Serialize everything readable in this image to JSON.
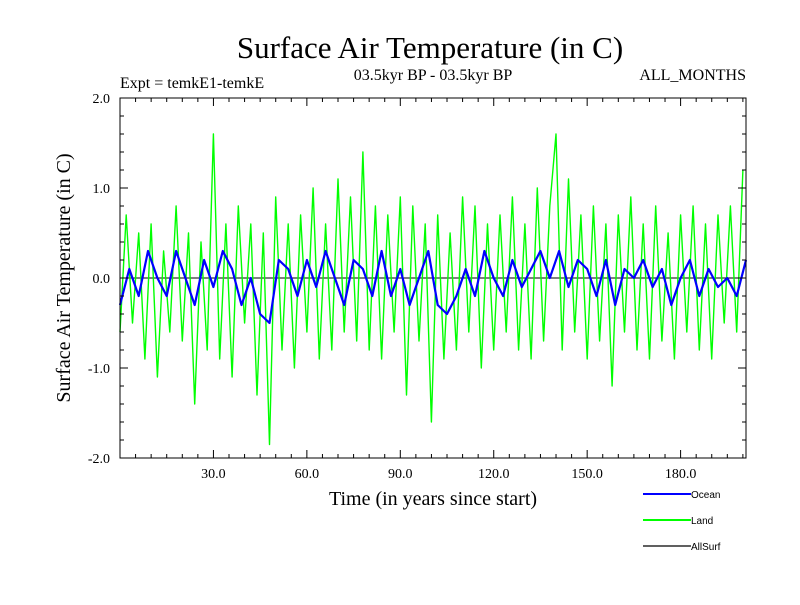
{
  "chart_data": {
    "type": "line",
    "title": "Surface Air Temperature (in C)",
    "subtitle_left": "Expt = temkE1-temkE",
    "subtitle_center": "03.5kyr BP - 03.5kyr BP",
    "subtitle_right": "ALL_MONTHS",
    "xlabel": "Time (in years since start)",
    "ylabel": "Surface Air Temperature (in C)",
    "xlim": [
      0,
      201
    ],
    "ylim": [
      -2.0,
      2.0
    ],
    "x_ticks": [
      30,
      60,
      90,
      120,
      150,
      180
    ],
    "x_tick_labels": [
      "30.0",
      "60.0",
      "90.0",
      "120.0",
      "150.0",
      "180.0"
    ],
    "y_ticks": [
      -2.0,
      -1.0,
      0.0,
      1.0,
      2.0
    ],
    "y_tick_labels": [
      "-2.0",
      "-1.0",
      "0.0",
      "1.0",
      "2.0"
    ],
    "zero_line": true,
    "series": [
      {
        "name": "Land",
        "color": "#00ff00",
        "x": [
          0,
          2,
          4,
          6,
          8,
          10,
          12,
          14,
          16,
          18,
          20,
          22,
          24,
          26,
          28,
          30,
          32,
          34,
          36,
          38,
          40,
          42,
          44,
          46,
          48,
          50,
          52,
          54,
          56,
          58,
          60,
          62,
          64,
          66,
          68,
          70,
          72,
          74,
          76,
          78,
          80,
          82,
          84,
          86,
          88,
          90,
          92,
          94,
          96,
          98,
          100,
          102,
          104,
          106,
          108,
          110,
          112,
          114,
          116,
          118,
          120,
          122,
          124,
          126,
          128,
          130,
          132,
          134,
          136,
          138,
          140,
          142,
          144,
          146,
          148,
          150,
          152,
          154,
          156,
          158,
          160,
          162,
          164,
          166,
          168,
          170,
          172,
          174,
          176,
          178,
          180,
          182,
          184,
          186,
          188,
          190,
          192,
          194,
          196,
          198,
          200
        ],
        "values": [
          -0.6,
          0.7,
          -0.5,
          0.5,
          -0.9,
          0.6,
          -1.1,
          0.3,
          -0.6,
          0.8,
          -0.7,
          0.5,
          -1.4,
          0.4,
          -0.8,
          1.6,
          -0.9,
          0.6,
          -1.1,
          0.8,
          -0.5,
          0.6,
          -1.3,
          0.5,
          -1.85,
          0.9,
          -0.8,
          0.6,
          -1.0,
          0.7,
          -0.6,
          1.0,
          -0.9,
          0.6,
          -0.8,
          1.1,
          -0.6,
          0.9,
          -0.7,
          1.4,
          -0.8,
          0.8,
          -0.9,
          0.7,
          -0.6,
          0.9,
          -1.3,
          0.8,
          -0.7,
          0.6,
          -1.6,
          0.7,
          -0.9,
          0.5,
          -0.8,
          0.9,
          -0.6,
          0.8,
          -1.0,
          0.6,
          -0.8,
          0.7,
          -0.6,
          0.9,
          -0.8,
          0.6,
          -0.9,
          1.0,
          -0.7,
          0.8,
          1.6,
          -0.8,
          1.1,
          -0.6,
          0.7,
          -0.9,
          0.8,
          -0.7,
          0.6,
          -1.2,
          0.7,
          -0.6,
          0.9,
          -0.8,
          0.6,
          -0.9,
          0.8,
          -0.7,
          0.5,
          -0.9,
          0.7,
          -0.6,
          0.8,
          -0.8,
          0.6,
          -0.9,
          0.7,
          -0.5,
          0.8,
          -0.6,
          1.2
        ]
      },
      {
        "name": "Ocean",
        "color": "#0000ff",
        "x": [
          0,
          3,
          6,
          9,
          12,
          15,
          18,
          21,
          24,
          27,
          30,
          33,
          36,
          39,
          42,
          45,
          48,
          51,
          54,
          57,
          60,
          63,
          66,
          69,
          72,
          75,
          78,
          81,
          84,
          87,
          90,
          93,
          96,
          99,
          102,
          105,
          108,
          111,
          114,
          117,
          120,
          123,
          126,
          129,
          132,
          135,
          138,
          141,
          144,
          147,
          150,
          153,
          156,
          159,
          162,
          165,
          168,
          171,
          174,
          177,
          180,
          183,
          186,
          189,
          192,
          195,
          198,
          201
        ],
        "values": [
          -0.3,
          0.1,
          -0.2,
          0.3,
          0.0,
          -0.2,
          0.3,
          0.0,
          -0.3,
          0.2,
          -0.1,
          0.3,
          0.1,
          -0.3,
          0.0,
          -0.4,
          -0.5,
          0.2,
          0.1,
          -0.2,
          0.2,
          -0.1,
          0.3,
          0.0,
          -0.3,
          0.2,
          0.1,
          -0.2,
          0.3,
          -0.2,
          0.1,
          -0.3,
          0.0,
          0.3,
          -0.3,
          -0.4,
          -0.2,
          0.1,
          -0.2,
          0.3,
          0.0,
          -0.2,
          0.2,
          -0.1,
          0.1,
          0.3,
          0.0,
          0.3,
          -0.1,
          0.2,
          0.1,
          -0.2,
          0.2,
          -0.3,
          0.1,
          0.0,
          0.2,
          -0.1,
          0.1,
          -0.3,
          0.0,
          0.2,
          -0.2,
          0.1,
          -0.1,
          0.0,
          -0.2,
          0.2
        ]
      },
      {
        "name": "AllSurf",
        "color": "#000000",
        "x": [],
        "values": []
      }
    ],
    "legend": {
      "placement": "bottom-right",
      "entries": [
        {
          "name": "Ocean",
          "color": "#0000ff"
        },
        {
          "name": "Land",
          "color": "#00ff00"
        },
        {
          "name": "AllSurf",
          "color": "#000000"
        }
      ]
    }
  }
}
